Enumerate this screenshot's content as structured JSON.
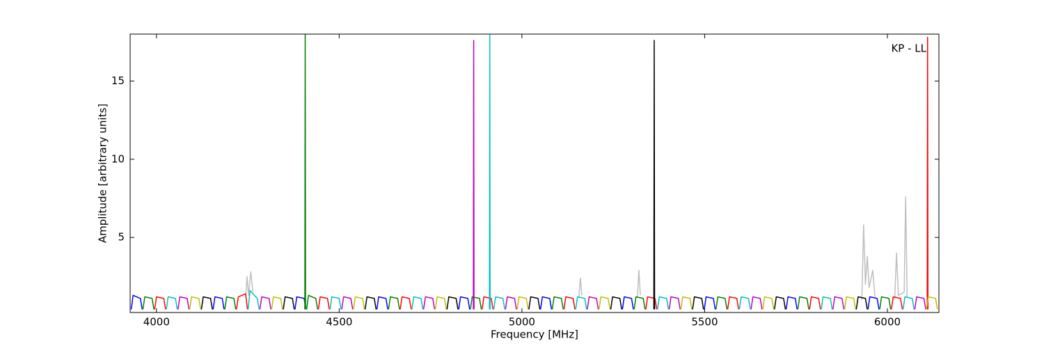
{
  "chart_data": {
    "type": "line",
    "xlabel": "Frequency [MHz]",
    "ylabel": "Amplitude [arbitrary units]",
    "annotation": "KP - LL",
    "xlim": [
      3928,
      6141
    ],
    "ylim": [
      0.2,
      18.0
    ],
    "xticks": [
      4000,
      4500,
      5000,
      5500,
      6000
    ],
    "yticks": [
      5,
      10,
      15
    ],
    "series": [
      {
        "color": "#bfbfbf",
        "x": [
          4244,
          4248,
          4252,
          4258,
          4264,
          null,
          5156,
          5160,
          5164,
          null,
          5316,
          5320,
          5324,
          null,
          5930,
          5935,
          5940,
          5945,
          5950,
          5960,
          5966,
          null,
          6020,
          6025,
          6030,
          6046,
          6050,
          6054
        ],
        "values": [
          1.2,
          2.5,
          1.3,
          2.8,
          1.5,
          null,
          1.2,
          2.4,
          1.3,
          null,
          1.2,
          2.9,
          1.3,
          null,
          1.0,
          5.8,
          2.0,
          3.8,
          1.8,
          2.9,
          1.2,
          null,
          1.0,
          4.0,
          1.3,
          1.5,
          7.6,
          1.2
        ]
      },
      {
        "color": "#0000ff",
        "x": [
          3931,
          3936,
          3956,
          3961,
          null,
          4155,
          4160,
          4180,
          4185,
          null,
          4379,
          4384,
          4404,
          4409,
          null,
          4603,
          4608,
          4628,
          4633,
          null,
          4827,
          4832,
          4852,
          4857,
          null,
          5051,
          5056,
          5076,
          5081,
          null,
          5275,
          5280,
          5300,
          5305,
          null,
          5499,
          5504,
          5524,
          5529,
          null,
          5723,
          5728,
          5748,
          5753,
          null,
          5947,
          5952,
          5972,
          5977
        ],
        "values": [
          0.4,
          1.3,
          1.1,
          0.4,
          null,
          0.4,
          1.2,
          1.1,
          0.4,
          null,
          0.4,
          1.2,
          1.1,
          0.4,
          null,
          0.4,
          1.2,
          1.1,
          0.4,
          null,
          0.4,
          1.2,
          1.1,
          0.4,
          null,
          0.4,
          1.2,
          1.1,
          0.4,
          null,
          0.4,
          1.2,
          1.1,
          0.4,
          null,
          0.4,
          1.2,
          1.1,
          0.4,
          null,
          0.4,
          1.2,
          1.1,
          0.4,
          null,
          0.4,
          1.2,
          1.1,
          0.4
        ]
      },
      {
        "color": "#008000",
        "x": [
          3963,
          3968,
          3988,
          3993,
          null,
          4187,
          4192,
          4212,
          4217,
          null,
          4406,
          4407,
          4408,
          null,
          4411,
          4416,
          4436,
          4441,
          null,
          4635,
          4640,
          4660,
          4665,
          null,
          4859,
          4864,
          4884,
          4889,
          null,
          5083,
          5088,
          5108,
          5113,
          null,
          5307,
          5312,
          5332,
          5337,
          null,
          5531,
          5536,
          5556,
          5561,
          null,
          5755,
          5760,
          5780,
          5785,
          null,
          5979,
          5984,
          6004,
          6009
        ],
        "values": [
          0.4,
          1.2,
          1.1,
          0.4,
          null,
          0.4,
          1.2,
          1.1,
          0.4,
          null,
          0.4,
          18.0,
          0.4,
          null,
          0.4,
          1.3,
          1.1,
          0.4,
          null,
          0.4,
          1.2,
          1.1,
          0.4,
          null,
          0.4,
          1.2,
          1.1,
          0.4,
          null,
          0.4,
          1.2,
          1.1,
          0.4,
          null,
          0.4,
          1.2,
          1.1,
          0.4,
          null,
          0.4,
          1.2,
          1.1,
          0.4,
          null,
          0.4,
          1.2,
          1.1,
          0.4,
          null,
          0.4,
          1.2,
          1.1,
          0.4
        ]
      },
      {
        "color": "#ff0000",
        "x": [
          3995,
          4000,
          4020,
          4025,
          null,
          4219,
          4224,
          4244,
          4249,
          null,
          4443,
          4448,
          4468,
          4473,
          null,
          4667,
          4672,
          4692,
          4697,
          null,
          4891,
          4896,
          4916,
          4921,
          null,
          5115,
          5120,
          5140,
          5145,
          null,
          5339,
          5344,
          5364,
          5369,
          null,
          5563,
          5568,
          5588,
          5593,
          null,
          5787,
          5792,
          5812,
          5817,
          null,
          6011,
          6016,
          6036,
          6041,
          null,
          6109,
          6110,
          6111
        ],
        "values": [
          0.4,
          1.2,
          1.1,
          0.4,
          null,
          0.4,
          1.2,
          1.4,
          0.4,
          null,
          0.4,
          1.2,
          1.1,
          0.4,
          null,
          0.4,
          1.2,
          1.1,
          0.4,
          null,
          0.4,
          1.2,
          1.1,
          0.4,
          null,
          0.4,
          1.2,
          1.1,
          0.4,
          null,
          0.4,
          1.2,
          1.1,
          0.4,
          null,
          0.4,
          1.2,
          1.1,
          0.4,
          null,
          0.4,
          1.2,
          1.1,
          0.4,
          null,
          0.4,
          1.2,
          1.1,
          0.4,
          null,
          0.4,
          17.8,
          0.4
        ]
      },
      {
        "color": "#00bfbf",
        "x": [
          4027,
          4032,
          4052,
          4057,
          null,
          4251,
          4256,
          4276,
          4281,
          null,
          4475,
          4480,
          4500,
          4505,
          null,
          4699,
          4704,
          4724,
          4729,
          null,
          4911,
          4912,
          4913,
          null,
          4923,
          4928,
          4948,
          4953,
          null,
          5147,
          5152,
          5172,
          5177,
          null,
          5371,
          5376,
          5396,
          5401,
          null,
          5595,
          5600,
          5620,
          5625,
          null,
          5819,
          5824,
          5844,
          5849,
          null,
          6043,
          6048,
          6068,
          6073
        ],
        "values": [
          0.4,
          1.2,
          1.1,
          0.4,
          null,
          0.4,
          1.6,
          1.1,
          0.4,
          null,
          0.4,
          1.2,
          1.1,
          0.4,
          null,
          0.4,
          1.2,
          1.1,
          0.4,
          null,
          0.4,
          18.0,
          0.4,
          null,
          0.4,
          1.2,
          1.1,
          0.4,
          null,
          0.4,
          1.2,
          1.1,
          0.4,
          null,
          0.4,
          1.2,
          1.1,
          0.4,
          null,
          0.4,
          1.2,
          1.1,
          0.4,
          null,
          0.4,
          1.2,
          1.1,
          0.4,
          null,
          0.4,
          1.2,
          1.1,
          0.4
        ]
      },
      {
        "color": "#bf00bf",
        "x": [
          4059,
          4064,
          4084,
          4089,
          null,
          4283,
          4288,
          4308,
          4313,
          null,
          4507,
          4512,
          4532,
          4537,
          null,
          4731,
          4736,
          4756,
          4761,
          null,
          4867,
          4868,
          4869,
          null,
          4955,
          4960,
          4980,
          4985,
          null,
          5179,
          5184,
          5204,
          5209,
          null,
          5403,
          5408,
          5428,
          5433,
          null,
          5627,
          5632,
          5652,
          5657,
          null,
          5851,
          5856,
          5876,
          5881,
          null,
          6075,
          6080,
          6100,
          6105
        ],
        "values": [
          0.4,
          1.2,
          1.1,
          0.4,
          null,
          0.4,
          1.2,
          1.1,
          0.4,
          null,
          0.4,
          1.2,
          1.1,
          0.4,
          null,
          0.4,
          1.2,
          1.1,
          0.4,
          null,
          0.4,
          17.6,
          0.4,
          null,
          0.4,
          1.2,
          1.1,
          0.4,
          null,
          0.4,
          1.2,
          1.1,
          0.4,
          null,
          0.4,
          1.2,
          1.1,
          0.4,
          null,
          0.4,
          1.2,
          1.1,
          0.4,
          null,
          0.4,
          1.2,
          1.1,
          0.4,
          null,
          0.4,
          1.2,
          1.1,
          0.4
        ]
      },
      {
        "color": "#bfbf00",
        "x": [
          4091,
          4096,
          4116,
          4121,
          null,
          4315,
          4320,
          4340,
          4345,
          null,
          4539,
          4544,
          4564,
          4569,
          null,
          4763,
          4768,
          4788,
          4793,
          null,
          4987,
          4992,
          5012,
          5017,
          null,
          5211,
          5216,
          5236,
          5241,
          null,
          5435,
          5440,
          5460,
          5465,
          null,
          5659,
          5664,
          5684,
          5689,
          null,
          5883,
          5888,
          5908,
          5913,
          null,
          6107,
          6112,
          6132,
          6137
        ],
        "values": [
          0.4,
          1.2,
          1.1,
          0.4,
          null,
          0.4,
          1.2,
          1.1,
          0.4,
          null,
          0.4,
          1.2,
          1.1,
          0.4,
          null,
          0.4,
          1.2,
          1.1,
          0.4,
          null,
          0.4,
          1.2,
          1.1,
          0.4,
          null,
          0.4,
          1.2,
          1.1,
          0.4,
          null,
          0.4,
          1.2,
          1.1,
          0.4,
          null,
          0.4,
          1.2,
          1.1,
          0.4,
          null,
          0.4,
          1.2,
          1.1,
          0.4,
          null,
          0.4,
          1.2,
          1.1,
          0.4
        ]
      },
      {
        "color": "#000000",
        "x": [
          4123,
          4128,
          4148,
          4153,
          null,
          4347,
          4352,
          4372,
          4377,
          null,
          4571,
          4576,
          4596,
          4601,
          null,
          4795,
          4800,
          4820,
          4825,
          null,
          5019,
          5024,
          5044,
          5049,
          null,
          5243,
          5248,
          5268,
          5273,
          null,
          5361,
          5362,
          5363,
          null,
          5467,
          5472,
          5492,
          5497,
          null,
          5691,
          5696,
          5716,
          5721,
          null,
          5915,
          5920,
          5940,
          5945
        ],
        "values": [
          0.4,
          1.2,
          1.1,
          0.4,
          null,
          0.4,
          1.2,
          1.1,
          0.4,
          null,
          0.4,
          1.2,
          1.1,
          0.4,
          null,
          0.4,
          1.2,
          1.1,
          0.4,
          null,
          0.4,
          1.2,
          1.1,
          0.4,
          null,
          0.4,
          1.2,
          1.1,
          0.4,
          null,
          0.4,
          17.6,
          0.4,
          null,
          0.4,
          1.2,
          1.1,
          0.4,
          null,
          0.4,
          1.2,
          1.1,
          0.4,
          null,
          0.4,
          1.2,
          1.1,
          0.4
        ]
      }
    ]
  }
}
